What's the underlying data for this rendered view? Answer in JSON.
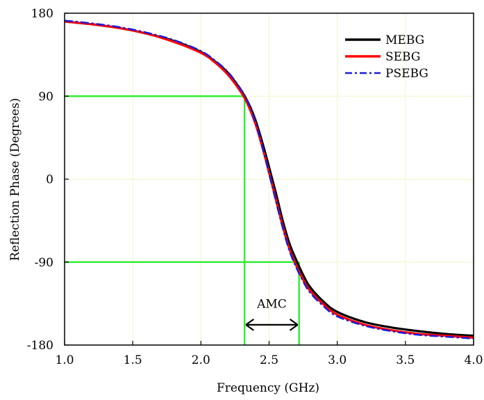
{
  "chart_data": {
    "type": "line",
    "title": "",
    "xlabel": "Frequency (GHz)",
    "ylabel": "Reflection Phase (Degrees)",
    "xlim": [
      1.0,
      4.0
    ],
    "ylim": [
      -180,
      180
    ],
    "xticks": [
      "1.0",
      "1.5",
      "2.0",
      "2.5",
      "3.0",
      "3.5",
      "4.0"
    ],
    "yticks": [
      "180",
      "90",
      "0",
      "-90",
      "-180"
    ],
    "grid": true,
    "legend_position": "top-right",
    "series": [
      {
        "name": "MEBG",
        "color": "#000000",
        "dash": "solid",
        "x": [
          1.0,
          1.2,
          1.4,
          1.6,
          1.8,
          2.0,
          2.1,
          2.2,
          2.3,
          2.35,
          2.4,
          2.45,
          2.5,
          2.55,
          2.6,
          2.65,
          2.7,
          2.75,
          2.8,
          2.9,
          3.0,
          3.2,
          3.4,
          3.6,
          3.8,
          4.0
        ],
        "y": [
          171,
          168,
          164,
          158,
          150,
          138,
          128,
          115,
          95,
          82,
          64,
          40,
          13,
          -15,
          -45,
          -70,
          -88,
          -104,
          -117,
          -133,
          -144,
          -155,
          -161,
          -165,
          -168,
          -170
        ]
      },
      {
        "name": "SEBG",
        "color": "#ff0000",
        "dash": "solid",
        "x": [
          1.0,
          1.2,
          1.4,
          1.6,
          1.8,
          2.0,
          2.1,
          2.2,
          2.3,
          2.35,
          2.4,
          2.45,
          2.5,
          2.55,
          2.6,
          2.65,
          2.7,
          2.75,
          2.8,
          2.9,
          3.0,
          3.2,
          3.4,
          3.6,
          3.8,
          4.0
        ],
        "y": [
          171,
          168,
          164,
          158,
          149,
          137,
          127,
          113,
          93,
          79,
          60,
          35,
          7,
          -22,
          -51,
          -76,
          -94,
          -109,
          -121,
          -136,
          -147,
          -158,
          -164,
          -168,
          -170,
          -172
        ]
      },
      {
        "name": "PSEBG",
        "color": "#1a1adb",
        "dash": "dashdot",
        "x": [
          1.0,
          1.2,
          1.4,
          1.6,
          1.8,
          2.0,
          2.1,
          2.2,
          2.3,
          2.35,
          2.4,
          2.45,
          2.5,
          2.55,
          2.6,
          2.65,
          2.7,
          2.75,
          2.8,
          2.9,
          3.0,
          3.2,
          3.4,
          3.6,
          3.8,
          4.0
        ],
        "y": [
          172,
          169,
          165,
          159,
          151,
          139,
          129,
          116,
          96,
          82,
          62,
          36,
          6,
          -24,
          -53,
          -78,
          -96,
          -111,
          -123,
          -138,
          -149,
          -159,
          -165,
          -169,
          -171,
          -173
        ]
      }
    ],
    "reference_lines": {
      "color": "#33ee33",
      "phase_upper": 90,
      "phase_lower": -90,
      "freq_low": 2.32,
      "freq_high": 2.72
    },
    "annotations": [
      {
        "text": "AMC",
        "x": 2.52,
        "y": -135
      }
    ]
  }
}
